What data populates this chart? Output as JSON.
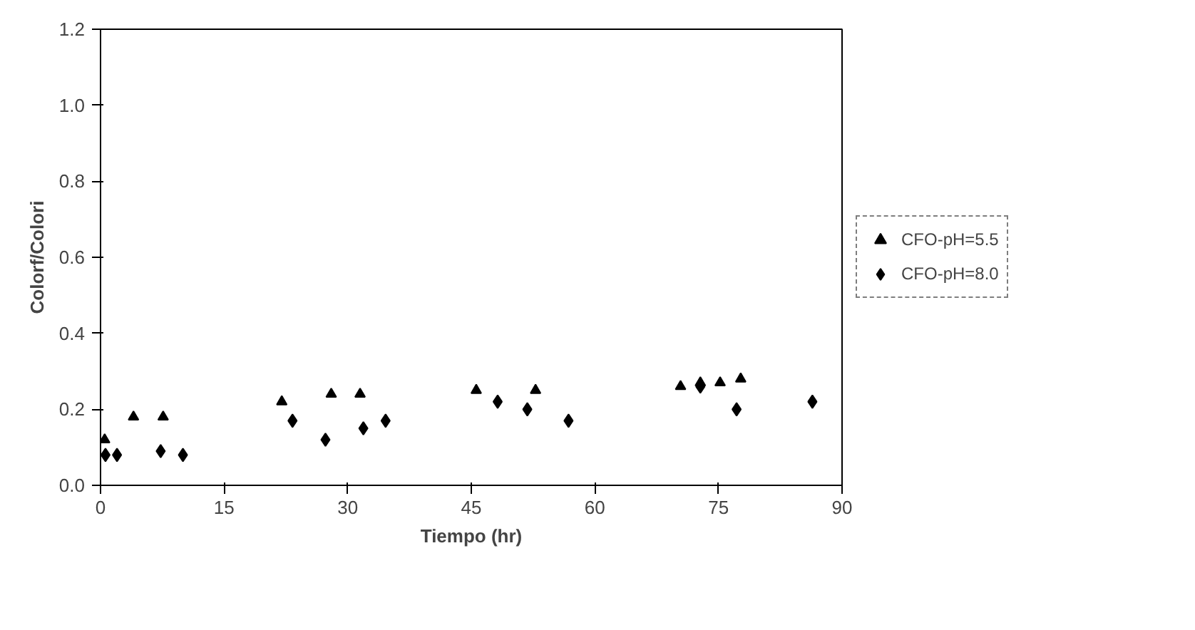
{
  "chart_data": {
    "type": "scatter",
    "xlabel": "Tiempo (hr)",
    "ylabel": "Colorf/Colori",
    "xlim": [
      0,
      90
    ],
    "xticks": [
      0,
      15,
      30,
      45,
      60,
      75,
      90
    ],
    "ylim": [
      0,
      1.2
    ],
    "yticks": [
      {
        "value": 0,
        "label": "0.0"
      },
      0.2,
      0.4,
      0.6,
      0.8,
      {
        "value": 1,
        "label": "1.0"
      },
      1.2
    ],
    "grid": false,
    "legend": "right",
    "series": [
      {
        "name": "CFO-pH=5.5",
        "color": "#000000",
        "marker": "triangle",
        "x": [
          0.5,
          4,
          7.6,
          22,
          28,
          31.5,
          45.6,
          52.8,
          70.4,
          72.8,
          75.2,
          77.7
        ],
        "values": [
          0.12,
          0.18,
          0.18,
          0.22,
          0.24,
          0.24,
          0.25,
          0.25,
          0.26,
          0.27,
          0.27,
          0.28
        ]
      },
      {
        "name": "CFO-pH=8.0",
        "color": "#000000",
        "marker": "diamond",
        "x": [
          0.6,
          2,
          7.3,
          10,
          23.3,
          27.3,
          31.9,
          34.6,
          48.2,
          51.8,
          56.8,
          72.8,
          77.2,
          86.4
        ],
        "values": [
          0.08,
          0.08,
          0.09,
          0.08,
          0.17,
          0.12,
          0.15,
          0.17,
          0.22,
          0.2,
          0.17,
          0.26,
          0.2,
          0.22
        ]
      }
    ]
  }
}
